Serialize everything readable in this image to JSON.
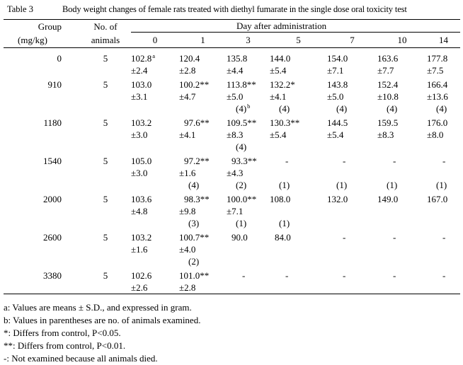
{
  "colors": {
    "text": "#000000",
    "background": "#ffffff"
  },
  "title": {
    "label": "Table 3",
    "text": "Body weight changes of female rats treated with diethyl fumarate in the single dose oral toxicity test"
  },
  "table": {
    "group_header": [
      "Group",
      "(mg/kg)"
    ],
    "animals_header": [
      "No. of",
      "animals"
    ],
    "spanner": "Day after administration",
    "day_headers": [
      "0",
      "1",
      "3",
      "5",
      "7",
      "10",
      "14"
    ],
    "groups": [
      {
        "group": "0",
        "animals": "5",
        "days": [
          [
            "102.8^a",
            "±2.4"
          ],
          [
            "120.4",
            "±2.8"
          ],
          [
            "135.8",
            "±4.4"
          ],
          [
            "144.0",
            "±5.4"
          ],
          [
            "154.0",
            "±7.1"
          ],
          [
            "163.6",
            "±7.7"
          ],
          [
            "177.8",
            "±7.5"
          ]
        ]
      },
      {
        "group": "910",
        "animals": "5",
        "days": [
          [
            "103.0",
            "±3.1",
            ""
          ],
          [
            "100.2**",
            "±4.7",
            ""
          ],
          [
            "113.8**",
            "±5.0",
            "(4)^b"
          ],
          [
            "132.2*",
            "±4.1",
            "(4)"
          ],
          [
            "143.8",
            "±5.0",
            "(4)"
          ],
          [
            "152.4",
            "±10.8",
            "(4)"
          ],
          [
            "166.4",
            "±13.6",
            "(4)"
          ]
        ]
      },
      {
        "group": "1180",
        "animals": "5",
        "days": [
          [
            "103.2",
            "±3.0",
            ""
          ],
          [
            "97.6**",
            "±4.1",
            ""
          ],
          [
            "109.5**",
            "±8.3",
            "(4)"
          ],
          [
            "130.3**",
            "±5.4",
            ""
          ],
          [
            "144.5",
            "±5.4",
            ""
          ],
          [
            "159.5",
            "±8.3",
            ""
          ],
          [
            "176.0",
            "±8.0",
            ""
          ]
        ]
      },
      {
        "group": "1540",
        "animals": "5",
        "days": [
          [
            "105.0",
            "±3.0",
            ""
          ],
          [
            "97.2**",
            "±1.6",
            "(4)"
          ],
          [
            "93.3**",
            "±4.3",
            "(2)"
          ],
          [
            "-",
            "",
            "(1)"
          ],
          [
            "-",
            "",
            "(1)"
          ],
          [
            "-",
            "",
            "(1)"
          ],
          [
            "-",
            "",
            "(1)"
          ]
        ]
      },
      {
        "group": "2000",
        "animals": "5",
        "days": [
          [
            "103.6",
            "±4.8",
            ""
          ],
          [
            "98.3**",
            "±9.8",
            "(3)"
          ],
          [
            "100.0**",
            "±7.1",
            "(1)"
          ],
          [
            "108.0",
            "",
            "(1)"
          ],
          [
            "132.0",
            "",
            ""
          ],
          [
            "149.0",
            "",
            ""
          ],
          [
            "167.0",
            "",
            ""
          ]
        ]
      },
      {
        "group": "2600",
        "animals": "5",
        "days": [
          [
            "103.2",
            "±1.6",
            ""
          ],
          [
            "100.7**",
            "±4.0",
            "(2)"
          ],
          [
            "90.0",
            "",
            ""
          ],
          [
            "84.0",
            "",
            ""
          ],
          [
            "-",
            "",
            ""
          ],
          [
            "-",
            "",
            ""
          ],
          [
            "-",
            "",
            ""
          ]
        ]
      },
      {
        "group": "3380",
        "animals": "5",
        "days": [
          [
            "102.6",
            "±2.6"
          ],
          [
            "101.0**",
            "±2.8"
          ],
          [
            "-",
            ""
          ],
          [
            "-",
            ""
          ],
          [
            "-",
            ""
          ],
          [
            "-",
            ""
          ],
          [
            "-",
            ""
          ]
        ]
      }
    ]
  },
  "footnotes": [
    "a: Values are means ± S.D., and expressed in gram.",
    "b: Values in parentheses are no. of animals examined.",
    "*: Differs from control, P<0.05.",
    "**: Differs from control, P<0.01.",
    "-: Not examined because all animals died."
  ]
}
